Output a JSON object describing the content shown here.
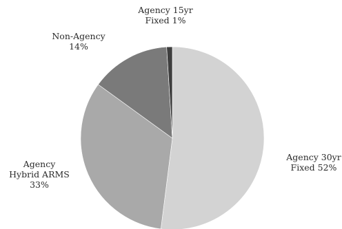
{
  "chart_data": {
    "type": "pie",
    "title": "",
    "start_angle_deg": 0,
    "direction": "clockwise",
    "slices": [
      {
        "label_lines": [
          "Agency 30yr",
          "Fixed 52%"
        ],
        "value": 52,
        "color": "#d3d3d3"
      },
      {
        "label_lines": [
          "Agency",
          "Hybrid ARMS",
          "33%"
        ],
        "value": 33,
        "color": "#a9a9a9"
      },
      {
        "label_lines": [
          "Non-Agency",
          "14%"
        ],
        "value": 14,
        "color": "#7a7a7a"
      },
      {
        "label_lines": [
          "Agency 15yr",
          "Fixed 1%"
        ],
        "value": 1,
        "color": "#3e3e3e"
      }
    ]
  }
}
